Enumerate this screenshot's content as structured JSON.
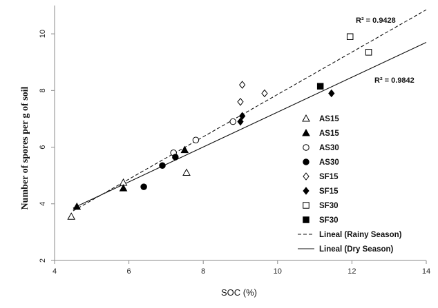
{
  "chart_data": {
    "type": "scatter",
    "title": "",
    "xlabel": "SOC (%)",
    "ylabel": "Number of spores per g of soil",
    "xlim": [
      4,
      14
    ],
    "ylim": [
      2,
      11
    ],
    "xticks": [
      4,
      6,
      8,
      10,
      12,
      14
    ],
    "yticks": [
      2,
      4,
      6,
      8,
      10
    ],
    "xtick_labels": [
      "4",
      "6",
      "8",
      "10",
      "12",
      "14"
    ],
    "ytick_labels": [
      "2",
      "4",
      "6",
      "8",
      "10"
    ],
    "grid": false,
    "legend_position": "right",
    "series": [
      {
        "name": "AS15",
        "marker": "triangle",
        "filled": false,
        "points": [
          [
            4.45,
            3.55
          ],
          [
            5.85,
            4.75
          ],
          [
            7.55,
            5.1
          ]
        ]
      },
      {
        "name": "AS15",
        "marker": "triangle",
        "filled": true,
        "points": [
          [
            4.6,
            3.9
          ],
          [
            5.85,
            4.55
          ],
          [
            7.5,
            5.9
          ]
        ]
      },
      {
        "name": "AS30",
        "marker": "circle",
        "filled": false,
        "points": [
          [
            7.2,
            5.8
          ],
          [
            7.8,
            6.25
          ],
          [
            8.8,
            6.9
          ]
        ]
      },
      {
        "name": "AS30",
        "marker": "circle",
        "filled": true,
        "points": [
          [
            6.4,
            4.6
          ],
          [
            6.9,
            5.35
          ],
          [
            7.25,
            5.65
          ]
        ]
      },
      {
        "name": "SF15",
        "marker": "diamond",
        "filled": false,
        "points": [
          [
            9.0,
            7.6
          ],
          [
            9.05,
            8.2
          ],
          [
            9.65,
            7.9
          ]
        ]
      },
      {
        "name": "SF15",
        "marker": "diamond",
        "filled": true,
        "points": [
          [
            9.0,
            6.9
          ],
          [
            9.05,
            7.1
          ],
          [
            11.45,
            7.9
          ]
        ]
      },
      {
        "name": "SF30",
        "marker": "square",
        "filled": false,
        "points": [
          [
            11.95,
            9.9
          ],
          [
            12.45,
            9.35
          ]
        ]
      },
      {
        "name": "SF30",
        "marker": "square",
        "filled": true,
        "points": [
          [
            11.15,
            8.15
          ]
        ]
      }
    ],
    "trendlines": [
      {
        "name": "Lineal (Rainy Season)",
        "style": "dashed",
        "from": [
          4.5,
          3.75
        ],
        "to": [
          14,
          10.85
        ],
        "r2_label": "R² = 0.9428"
      },
      {
        "name": "Lineal (Dry Season)",
        "style": "solid",
        "from": [
          4.5,
          3.85
        ],
        "to": [
          14,
          9.7
        ],
        "r2_label": "R² = 0.9842"
      }
    ]
  }
}
